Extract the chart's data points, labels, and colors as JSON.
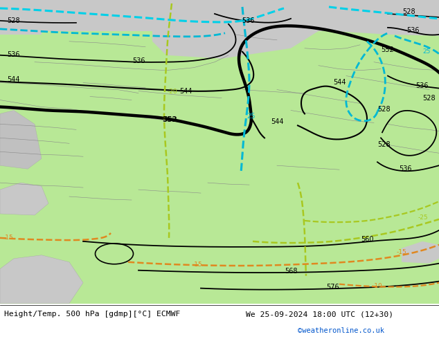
{
  "title_left": "Height/Temp. 500 hPa [gdmp][°C] ECMWF",
  "title_right": "We 25-09-2024 18:00 UTC (12+30)",
  "credit": "©weatheronline.co.uk",
  "land_color": "#b8e896",
  "gray_color": "#c8c8c8",
  "white_color": "#e8e8e8",
  "fig_width": 6.34,
  "fig_height": 4.9
}
